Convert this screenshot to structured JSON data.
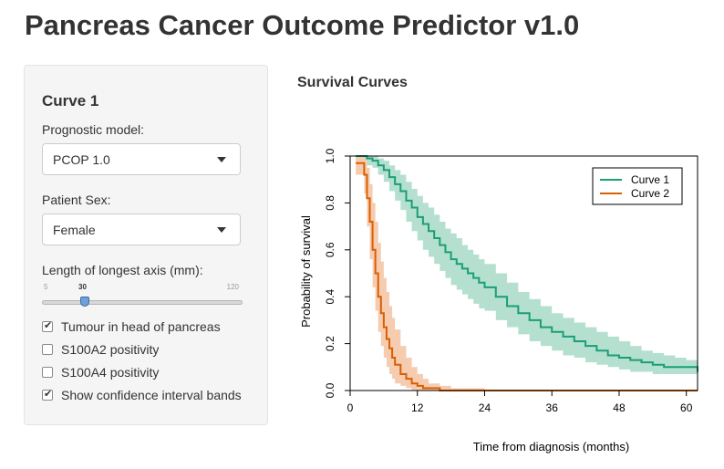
{
  "app": {
    "title": "Pancreas Cancer Outcome Predictor v1.0"
  },
  "sidebar": {
    "heading": "Curve 1",
    "model_label": "Prognostic model:",
    "model_value": "PCOP 1.0",
    "sex_label": "Patient Sex:",
    "sex_value": "Female",
    "axis_label": "Length of longest axis (mm):",
    "slider": {
      "min": "5",
      "max": "120",
      "value": "30"
    },
    "checkboxes": [
      {
        "label": "Tumour in head of pancreas",
        "checked": true
      },
      {
        "label": "S100A2 positivity",
        "checked": false
      },
      {
        "label": "S100A4 positivity",
        "checked": false
      },
      {
        "label": "Show confidence interval bands",
        "checked": true
      }
    ]
  },
  "output": {
    "title": "Survival Curves"
  },
  "colors": {
    "curve1": "#1b9e77",
    "curve2": "#d95f02",
    "band1": "#b5e0d0",
    "band2": "#f6ccb0"
  },
  "chart_data": {
    "type": "line",
    "title": "",
    "xlabel": "Time from diagnosis (months)",
    "ylabel": "Probability of survival",
    "xlim": [
      0,
      62
    ],
    "ylim": [
      0,
      1
    ],
    "xticks": [
      "0",
      "12",
      "24",
      "36",
      "48",
      "60"
    ],
    "yticks": [
      "0.0",
      "0.2",
      "0.4",
      "0.6",
      "0.8",
      "1.0"
    ],
    "legend_position": "top-right",
    "series": [
      {
        "name": "Curve 1",
        "x": [
          1,
          2,
          3,
          4,
          5,
          6,
          7,
          8,
          9,
          10,
          11,
          12,
          13,
          14,
          15,
          16,
          17,
          18,
          19,
          20,
          21,
          22,
          23,
          24,
          26,
          28,
          30,
          32,
          34,
          36,
          38,
          40,
          42,
          44,
          46,
          48,
          50,
          52,
          54,
          56,
          58,
          60,
          62
        ],
        "y": [
          1.0,
          1.0,
          0.99,
          0.98,
          0.96,
          0.94,
          0.91,
          0.88,
          0.85,
          0.81,
          0.78,
          0.74,
          0.71,
          0.68,
          0.65,
          0.62,
          0.59,
          0.56,
          0.54,
          0.52,
          0.5,
          0.48,
          0.46,
          0.44,
          0.4,
          0.36,
          0.33,
          0.3,
          0.27,
          0.25,
          0.23,
          0.21,
          0.19,
          0.17,
          0.15,
          0.14,
          0.13,
          0.12,
          0.11,
          0.1,
          0.1,
          0.1,
          0.08
        ],
        "lower": [
          0.98,
          0.98,
          0.96,
          0.95,
          0.92,
          0.89,
          0.85,
          0.81,
          0.77,
          0.72,
          0.68,
          0.64,
          0.6,
          0.57,
          0.54,
          0.51,
          0.48,
          0.45,
          0.43,
          0.41,
          0.39,
          0.37,
          0.35,
          0.34,
          0.3,
          0.27,
          0.24,
          0.21,
          0.19,
          0.17,
          0.15,
          0.14,
          0.12,
          0.11,
          0.1,
          0.09,
          0.08,
          0.08,
          0.07,
          0.07,
          0.07,
          0.07,
          0.06
        ],
        "upper": [
          1.0,
          1.0,
          1.0,
          1.0,
          0.99,
          0.98,
          0.96,
          0.94,
          0.92,
          0.89,
          0.86,
          0.83,
          0.8,
          0.78,
          0.75,
          0.72,
          0.69,
          0.67,
          0.65,
          0.62,
          0.6,
          0.58,
          0.56,
          0.54,
          0.5,
          0.46,
          0.42,
          0.39,
          0.36,
          0.33,
          0.31,
          0.29,
          0.27,
          0.25,
          0.23,
          0.21,
          0.19,
          0.17,
          0.16,
          0.15,
          0.14,
          0.13,
          0.12
        ]
      },
      {
        "name": "Curve 2",
        "x": [
          1,
          2,
          2.5,
          3,
          3.5,
          4,
          4.5,
          5,
          5.5,
          6,
          6.5,
          7,
          7.5,
          8,
          9,
          10,
          11,
          12,
          13,
          14,
          16,
          18,
          20,
          24,
          30,
          40,
          50,
          62
        ],
        "y": [
          0.97,
          0.97,
          0.92,
          0.82,
          0.72,
          0.6,
          0.5,
          0.4,
          0.33,
          0.27,
          0.22,
          0.18,
          0.14,
          0.11,
          0.07,
          0.05,
          0.03,
          0.02,
          0.01,
          0.01,
          0.0,
          0.0,
          0.0,
          0.0,
          0.0,
          0.0,
          0.0,
          0.0
        ],
        "lower": [
          0.92,
          0.92,
          0.84,
          0.7,
          0.56,
          0.44,
          0.34,
          0.25,
          0.19,
          0.14,
          0.1,
          0.07,
          0.05,
          0.03,
          0.02,
          0.01,
          0.0,
          0.0,
          0.0,
          0.0,
          0.0,
          0.0,
          0.0,
          0.0,
          0.0,
          0.0,
          0.0,
          0.0
        ],
        "upper": [
          1.0,
          1.0,
          0.99,
          0.95,
          0.88,
          0.8,
          0.72,
          0.63,
          0.55,
          0.48,
          0.42,
          0.36,
          0.31,
          0.26,
          0.19,
          0.14,
          0.1,
          0.07,
          0.05,
          0.03,
          0.02,
          0.01,
          0.01,
          0.0,
          0.0,
          0.0,
          0.0,
          0.0
        ]
      }
    ]
  }
}
